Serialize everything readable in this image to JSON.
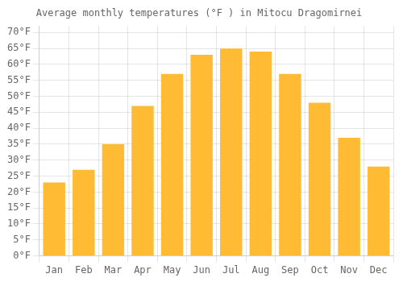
{
  "chart_data": {
    "type": "bar",
    "title": "Average monthly temperatures (°F ) in Mitocu Dragomirnei",
    "categories": [
      "Jan",
      "Feb",
      "Mar",
      "Apr",
      "May",
      "Jun",
      "Jul",
      "Aug",
      "Sep",
      "Oct",
      "Nov",
      "Dec"
    ],
    "values": [
      23,
      27,
      35,
      47,
      57,
      63,
      65,
      64,
      57,
      48,
      37,
      28
    ],
    "color": "#FFBB33",
    "ylim": [
      0,
      72
    ],
    "yticks": [
      {
        "value": 0,
        "label": "0°F"
      },
      {
        "value": 5,
        "label": "5°F"
      },
      {
        "value": 10,
        "label": "10°F"
      },
      {
        "value": 15,
        "label": "15°F"
      },
      {
        "value": 20,
        "label": "20°F"
      },
      {
        "value": 25,
        "label": "25°F"
      },
      {
        "value": 30,
        "label": "30°F"
      },
      {
        "value": 35,
        "label": "35°F"
      },
      {
        "value": 40,
        "label": "40°F"
      },
      {
        "value": 45,
        "label": "45°F"
      },
      {
        "value": 50,
        "label": "50°F"
      },
      {
        "value": 55,
        "label": "55°F"
      },
      {
        "value": 60,
        "label": "60°F"
      },
      {
        "value": 65,
        "label": "65°F"
      },
      {
        "value": 70,
        "label": "70°F"
      }
    ],
    "grid": true
  }
}
